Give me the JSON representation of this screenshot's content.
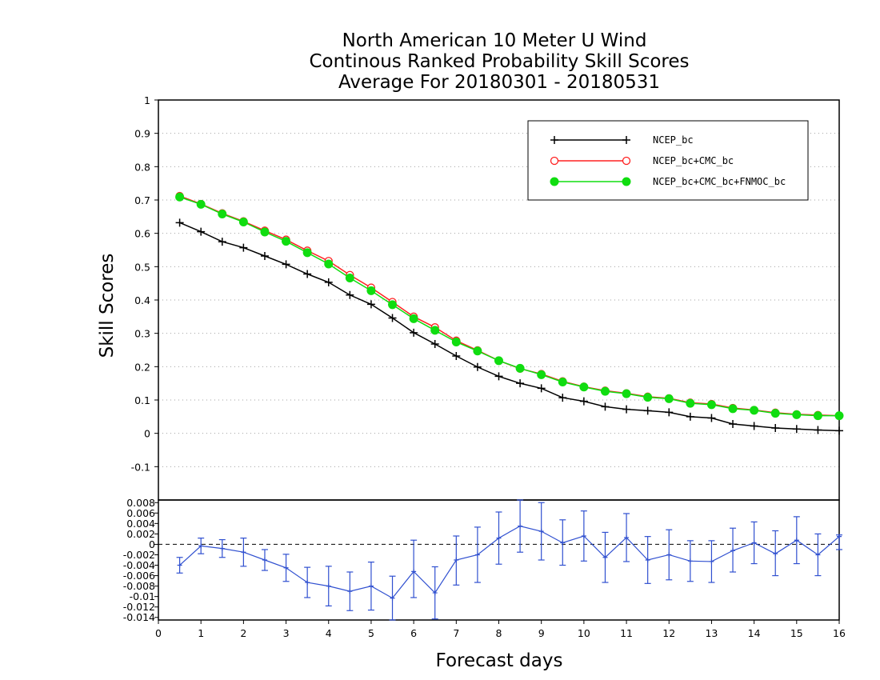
{
  "chart_data": [
    {
      "type": "line",
      "title": [
        "North American 10 Meter U Wind",
        "Continous Ranked Probability Skill Scores",
        "Average For 20180301 - 20180531"
      ],
      "xlabel": "Forecast days",
      "ylabel": "Skill Scores",
      "xlim": [
        0,
        16
      ],
      "ylim": [
        -0.2,
        1
      ],
      "x_ticks": [
        "0",
        "1",
        "2",
        "3",
        "4",
        "5",
        "6",
        "7",
        "8",
        "9",
        "10",
        "11",
        "12",
        "13",
        "14",
        "15",
        "16"
      ],
      "y_ticks": [
        "1",
        "0.9",
        "0.8",
        "0.7",
        "0.6",
        "0.5",
        "0.4",
        "0.3",
        "0.2",
        "0.1",
        "0",
        "-0.1"
      ],
      "grid": true,
      "legend_position": "top-right",
      "x": [
        0.5,
        1,
        1.5,
        2,
        2.5,
        3,
        3.5,
        4,
        4.5,
        5,
        5.5,
        6,
        6.5,
        7,
        7.5,
        8,
        8.5,
        9,
        9.5,
        10,
        10.5,
        11,
        11.5,
        12,
        12.5,
        13,
        13.5,
        14,
        14.5,
        15,
        15.5,
        16
      ],
      "series": [
        {
          "name": "NCEP_bc",
          "color": "#000000",
          "marker": "plus",
          "values": [
            0.632,
            0.605,
            0.575,
            0.557,
            0.532,
            0.507,
            0.478,
            0.453,
            0.415,
            0.387,
            0.346,
            0.302,
            0.268,
            0.232,
            0.199,
            0.171,
            0.15,
            0.135,
            0.107,
            0.096,
            0.08,
            0.072,
            0.068,
            0.063,
            0.05,
            0.046,
            0.028,
            0.022,
            0.016,
            0.013,
            0.01,
            0.008
          ]
        },
        {
          "name": "NCEP_bc+CMC_bc",
          "color": "#ff2020",
          "marker": "open-circle",
          "values": [
            0.712,
            0.688,
            0.66,
            0.636,
            0.608,
            0.581,
            0.548,
            0.517,
            0.475,
            0.437,
            0.394,
            0.35,
            0.318,
            0.278,
            0.249,
            0.218,
            0.194,
            0.178,
            0.156,
            0.14,
            0.128,
            0.12,
            0.11,
            0.105,
            0.092,
            0.088,
            0.076,
            0.07,
            0.062,
            0.057,
            0.055,
            0.053
          ]
        },
        {
          "name": "NCEP_bc+CMC_bc+FNMOC_bc",
          "color": "#10dd10",
          "marker": "filled-circle",
          "values": [
            0.709,
            0.687,
            0.658,
            0.634,
            0.604,
            0.576,
            0.542,
            0.508,
            0.466,
            0.428,
            0.386,
            0.344,
            0.309,
            0.274,
            0.247,
            0.218,
            0.195,
            0.176,
            0.154,
            0.139,
            0.126,
            0.119,
            0.108,
            0.104,
            0.09,
            0.086,
            0.074,
            0.069,
            0.06,
            0.056,
            0.053,
            0.053
          ]
        }
      ]
    },
    {
      "type": "line",
      "title": "",
      "xlim": [
        0,
        16
      ],
      "ylim": [
        -0.0145,
        0.0085
      ],
      "y_ticks": [
        "0.008",
        "0.006",
        "0.004",
        "0.002",
        "0",
        "-0.002",
        "-0.004",
        "-0.006",
        "-0.008",
        "-0.01",
        "-0.012",
        "-0.014"
      ],
      "x": [
        0.5,
        1,
        1.5,
        2,
        2.5,
        3,
        3.5,
        4,
        4.5,
        5,
        5.5,
        6,
        6.5,
        7,
        7.5,
        8,
        8.5,
        9,
        9.5,
        10,
        10.5,
        11,
        11.5,
        12,
        12.5,
        13,
        13.5,
        14,
        14.5,
        15,
        15.5,
        16
      ],
      "series": [
        {
          "name": "",
          "color": "#3050d0",
          "marker": "plus",
          "values": [
            -0.004,
            -0.0003,
            -0.0008,
            -0.0015,
            -0.003,
            -0.0045,
            -0.0073,
            -0.008,
            -0.009,
            -0.008,
            -0.0103,
            -0.0052,
            -0.0093,
            -0.003,
            -0.002,
            0.0012,
            0.0035,
            0.0025,
            0.0003,
            0.0016,
            -0.0025,
            0.0013,
            -0.003,
            -0.002,
            -0.0032,
            -0.0033,
            -0.0012,
            0.0003,
            -0.0018,
            0.0008,
            -0.002,
            0.0015
          ],
          "error_low": [
            -0.0055,
            -0.0018,
            -0.0025,
            -0.0042,
            -0.005,
            -0.0071,
            -0.0102,
            -0.0118,
            -0.0127,
            -0.0126,
            -0.0145,
            -0.0102,
            -0.0143,
            -0.0078,
            -0.0073,
            -0.0038,
            -0.0015,
            -0.003,
            -0.004,
            -0.0032,
            -0.0073,
            -0.0033,
            -0.0075,
            -0.0068,
            -0.0071,
            -0.0073,
            -0.0053,
            -0.0037,
            -0.006,
            -0.0037,
            -0.006,
            -0.001
          ],
          "error_high": [
            -0.0025,
            0.0012,
            0.0009,
            0.0012,
            -0.001,
            -0.0019,
            -0.0044,
            -0.0042,
            -0.0053,
            -0.0034,
            -0.0061,
            0.0008,
            -0.0043,
            0.0016,
            0.0033,
            0.0062,
            0.0085,
            0.008,
            0.0047,
            0.0064,
            0.0023,
            0.0059,
            0.0015,
            0.0028,
            0.0007,
            0.0007,
            0.0031,
            0.0043,
            0.0026,
            0.0053,
            0.002,
            0.0018
          ]
        }
      ],
      "reference_line": 0
    }
  ]
}
